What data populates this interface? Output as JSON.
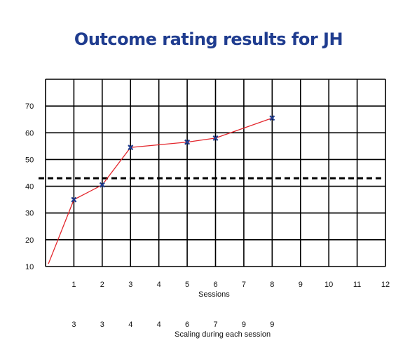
{
  "chart_data": {
    "type": "line",
    "title": "Outcome rating results for JH",
    "xlabel": "Sessions",
    "ylabel": "",
    "x_ticks": [
      "1",
      "2",
      "3",
      "4",
      "5",
      "6",
      "7",
      "8",
      "9",
      "10",
      "11",
      "12"
    ],
    "xlim": [
      0,
      12
    ],
    "y_ticks": [
      "10",
      "20",
      "30",
      "40",
      "50",
      "60",
      "70"
    ],
    "ylim": [
      10,
      80
    ],
    "grid": true,
    "series": [
      {
        "name": "",
        "color": "#e3262c",
        "marker_color": "#1f3c8f",
        "points": [
          {
            "x": 0.1,
            "y": 11,
            "marker": false
          },
          {
            "x": 1,
            "y": 35,
            "marker": true
          },
          {
            "x": 2,
            "y": 40.5,
            "marker": true
          },
          {
            "x": 3,
            "y": 54.5,
            "marker": true
          },
          {
            "x": 5,
            "y": 56.5,
            "marker": true
          },
          {
            "x": 6,
            "y": 58,
            "marker": true
          },
          {
            "x": 8,
            "y": 65.5,
            "marker": true
          }
        ]
      }
    ],
    "reference_line": {
      "y": 43,
      "style": "dashed",
      "color": "#000000"
    },
    "scaling": {
      "label": "Scaling during each session",
      "values": [
        {
          "x": 1,
          "value": "3"
        },
        {
          "x": 2,
          "value": "3"
        },
        {
          "x": 3,
          "value": "4"
        },
        {
          "x": 4,
          "value": "4"
        },
        {
          "x": 5,
          "value": "6"
        },
        {
          "x": 6,
          "value": "7"
        },
        {
          "x": 7,
          "value": "9"
        },
        {
          "x": 8,
          "value": "9"
        }
      ]
    }
  }
}
